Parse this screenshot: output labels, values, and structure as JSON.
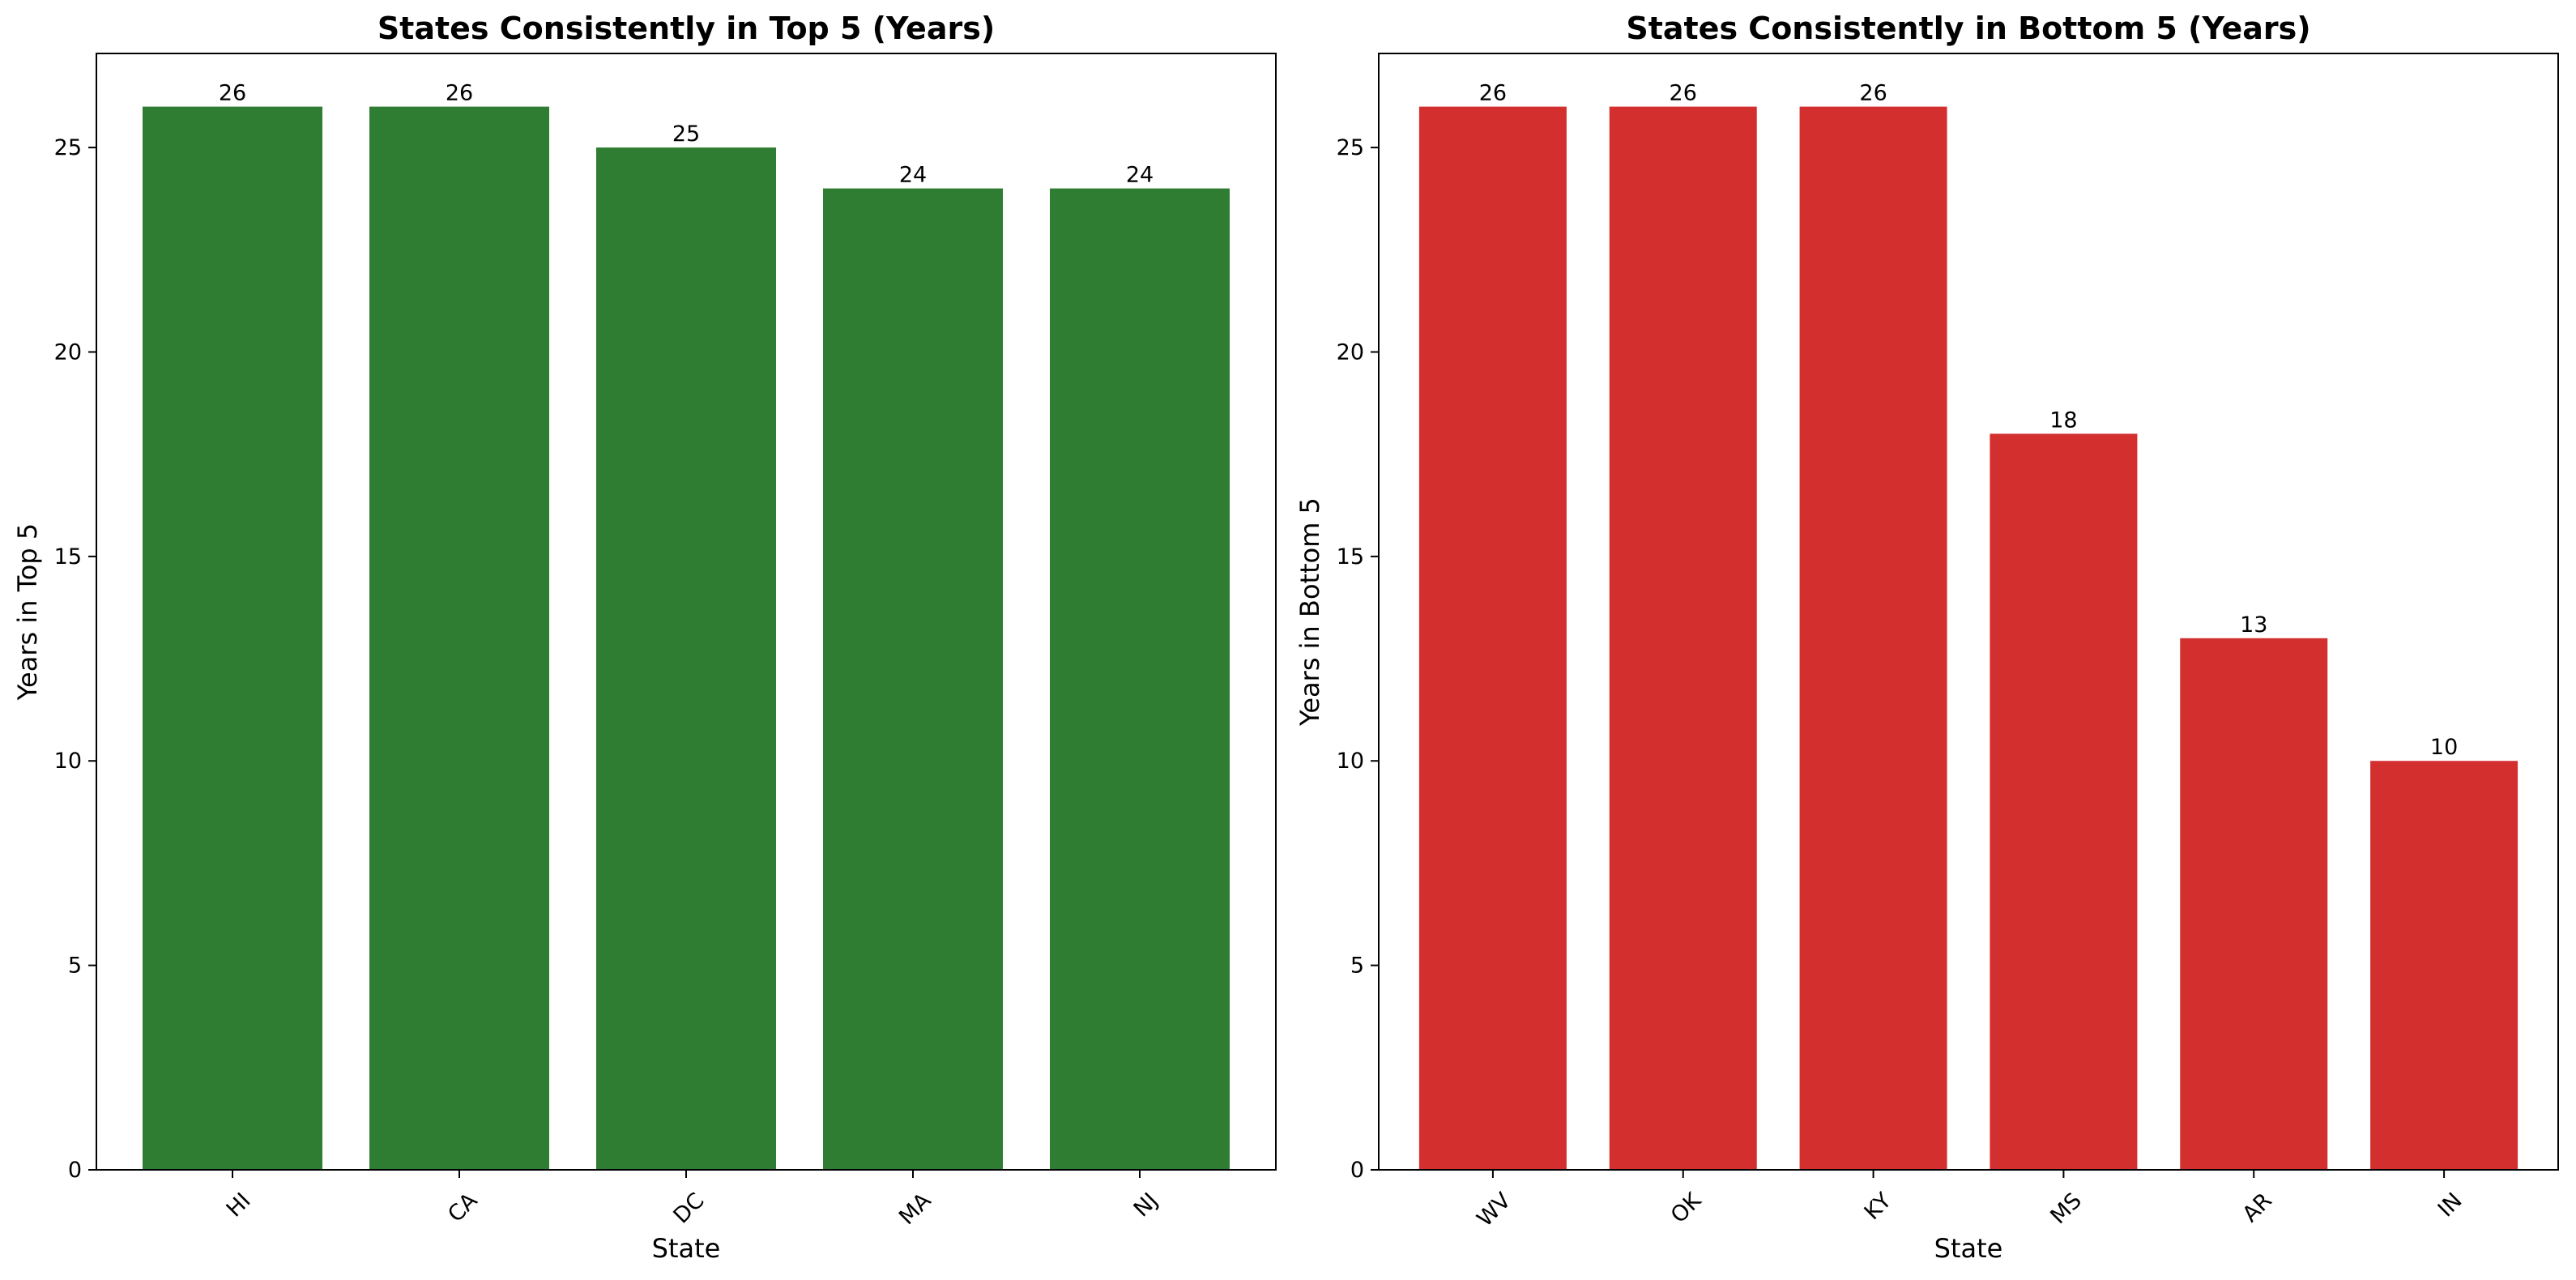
{
  "chart_data": [
    {
      "type": "bar",
      "title": "States Consistently in Top 5 (Years)",
      "xlabel": "State",
      "ylabel": "Years in Top 5",
      "categories": [
        "HI",
        "CA",
        "DC",
        "MA",
        "NJ"
      ],
      "values": [
        26,
        26,
        25,
        24,
        24
      ],
      "data_labels": [
        "26",
        "26",
        "25",
        "24",
        "24"
      ],
      "ylim": [
        0,
        27.3
      ],
      "yticks": [
        0,
        5,
        10,
        15,
        20,
        25
      ],
      "bar_color": "#2e7d32",
      "grid": false,
      "legend": "none"
    },
    {
      "type": "bar",
      "title": "States Consistently in Bottom 5 (Years)",
      "xlabel": "State",
      "ylabel": "Years in Bottom 5",
      "categories": [
        "WV",
        "OK",
        "KY",
        "MS",
        "AR",
        "IN"
      ],
      "values": [
        26,
        26,
        26,
        18,
        13,
        10
      ],
      "data_labels": [
        "26",
        "26",
        "26",
        "18",
        "13",
        "10"
      ],
      "ylim": [
        0,
        27.3
      ],
      "yticks": [
        0,
        5,
        10,
        15,
        20,
        25
      ],
      "bar_color": "#d32f2f",
      "grid": false,
      "legend": "none"
    }
  ]
}
